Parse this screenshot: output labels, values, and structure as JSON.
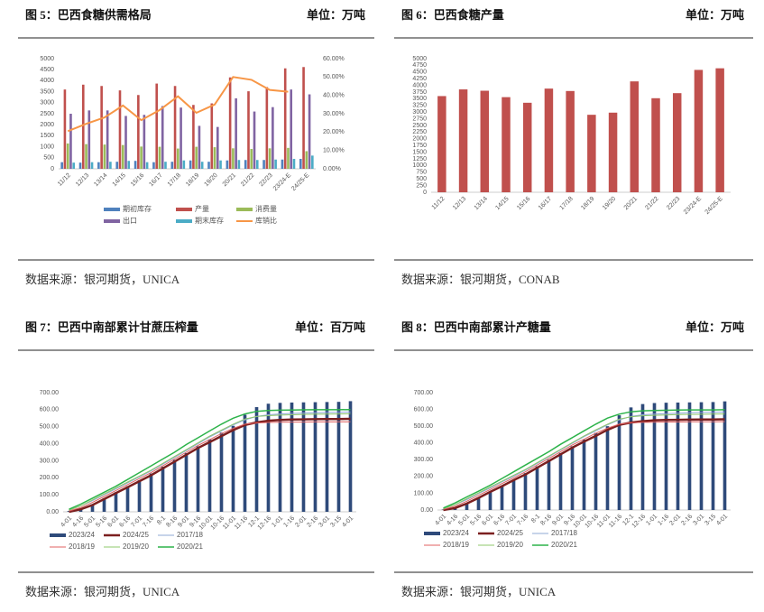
{
  "chart_data": [
    {
      "type": "combo",
      "title": "图 5：巴西食糖供需格局",
      "unit": "单位：万吨",
      "source": "数据来源：银河期货，UNICA",
      "categories": [
        "11/12",
        "12/13",
        "13/14",
        "14/15",
        "15/16",
        "16/17",
        "17/18",
        "18/19",
        "19/20",
        "20/21",
        "21/22",
        "22/23",
        "23/24-E",
        "24/25-E"
      ],
      "ylim": [
        0,
        5000
      ],
      "yticks": [
        0,
        500,
        1000,
        1500,
        2000,
        2500,
        3000,
        3500,
        4000,
        4500,
        5000
      ],
      "y2lim": [
        0,
        60
      ],
      "y2ticks": [
        {
          "value": 0,
          "label": "0.00%"
        },
        {
          "value": 10,
          "label": "10.00%"
        },
        {
          "value": 20,
          "label": "20.00%"
        },
        {
          "value": 30,
          "label": "30.00%"
        },
        {
          "value": 40,
          "label": "40.00%"
        },
        {
          "value": 50,
          "label": "50.00%"
        },
        {
          "value": 60,
          "label": "60.00%"
        }
      ],
      "series": [
        {
          "name": "期初库存",
          "type": "bar",
          "color": "#4f81bd",
          "values": [
            300,
            280,
            300,
            320,
            360,
            300,
            320,
            380,
            320,
            380,
            400,
            400,
            420,
            450
          ]
        },
        {
          "name": "产量",
          "type": "bar",
          "color": "#c0504d",
          "values": [
            3600,
            3820,
            3760,
            3560,
            3350,
            3870,
            3760,
            2900,
            2970,
            4150,
            3520,
            3710,
            4560,
            4620
          ]
        },
        {
          "name": "消费量",
          "type": "bar",
          "color": "#9bbb59",
          "values": [
            1150,
            1120,
            1100,
            1080,
            1010,
            1000,
            920,
            1000,
            980,
            930,
            900,
            930,
            950,
            800
          ]
        },
        {
          "name": "出口",
          "type": "bar",
          "color": "#8064a2",
          "values": [
            2500,
            2650,
            2650,
            2400,
            2450,
            2850,
            2780,
            1950,
            1900,
            3200,
            2600,
            2800,
            3600,
            3380
          ]
        },
        {
          "name": "期末库存",
          "type": "bar",
          "color": "#4bacc6",
          "values": [
            280,
            300,
            320,
            360,
            300,
            320,
            380,
            320,
            380,
            400,
            400,
            420,
            450,
            600
          ]
        },
        {
          "name": "库销比",
          "type": "line",
          "axis": "y2",
          "color": "#f79646",
          "values": [
            20.5,
            24.5,
            28,
            34.5,
            26.5,
            32,
            39.5,
            30.5,
            35,
            50,
            48.5,
            43,
            42,
            null
          ]
        }
      ]
    },
    {
      "type": "bar",
      "title": "图 6：巴西食糖产量",
      "unit": "单位：万吨",
      "source": "数据来源：银河期货，CONAB",
      "categories": [
        "11/12",
        "12/13",
        "13/14",
        "14/15",
        "15/16",
        "16/17",
        "17/18",
        "18/19",
        "19/20",
        "20/21",
        "21/22",
        "22/23",
        "23/24-E",
        "24/25-E"
      ],
      "ylim": [
        0,
        5000
      ],
      "yticks": [
        0,
        250,
        500,
        750,
        1000,
        1250,
        1500,
        1750,
        2000,
        2250,
        2500,
        2750,
        3000,
        3250,
        3500,
        3750,
        4000,
        4250,
        4500,
        4750,
        5000
      ],
      "series": [
        {
          "name": "产量",
          "type": "bar",
          "color": "#c0504d",
          "values": [
            3600,
            3850,
            3800,
            3560,
            3350,
            3880,
            3790,
            2900,
            2980,
            4150,
            3520,
            3710,
            4580,
            4640
          ]
        }
      ],
      "legend": false
    },
    {
      "type": "combo",
      "title": "图 7：巴西中南部累计甘蔗压榨量",
      "unit": "单位：百万吨",
      "source": "数据来源：银河期货，UNICA",
      "categories": [
        "4-01",
        "4-16",
        "5-01",
        "5-16",
        "6-01",
        "6-16",
        "7-01",
        "7-16",
        "8-1",
        "8-16",
        "9-01",
        "9-16",
        "10-01",
        "10-16",
        "11-01",
        "11-16",
        "12-1",
        "12-16",
        "1-01",
        "1-16",
        "2-01",
        "2-16",
        "3-01",
        "3-15",
        "4-01"
      ],
      "ylim": [
        0,
        700
      ],
      "yticks": [
        {
          "value": 0,
          "label": "0.00"
        },
        {
          "value": 100,
          "label": "100.00"
        },
        {
          "value": 200,
          "label": "200.00"
        },
        {
          "value": 300,
          "label": "300.00"
        },
        {
          "value": 400,
          "label": "400.00"
        },
        {
          "value": 500,
          "label": "500.00"
        },
        {
          "value": 600,
          "label": "600.00"
        },
        {
          "value": 700,
          "label": "700.00"
        }
      ],
      "series": [
        {
          "name": "2023/24",
          "type": "bar",
          "color": "#2e4a7a",
          "values": [
            5,
            20,
            45,
            80,
            115,
            150,
            185,
            225,
            265,
            305,
            345,
            385,
            425,
            465,
            505,
            570,
            615,
            635,
            640,
            642,
            643,
            644,
            645,
            646,
            650
          ]
        },
        {
          "name": "2024/25",
          "type": "line",
          "color": "#7b1f1f",
          "width": 2.5,
          "values": [
            0,
            15,
            40,
            75,
            110,
            145,
            180,
            215,
            255,
            295,
            335,
            375,
            410,
            445,
            480,
            510,
            525,
            535,
            540,
            542,
            543,
            544,
            545,
            545,
            546
          ]
        },
        {
          "name": "2017/18",
          "type": "line",
          "color": "#8fa9d6",
          "width": 1,
          "values": [
            10,
            35,
            65,
            100,
            135,
            170,
            205,
            240,
            280,
            320,
            360,
            400,
            440,
            475,
            510,
            540,
            560,
            570,
            575,
            578,
            580,
            582,
            584,
            585,
            586
          ]
        },
        {
          "name": "2018/19",
          "type": "line",
          "color": "#e06060",
          "width": 1,
          "values": [
            5,
            25,
            55,
            90,
            125,
            160,
            195,
            230,
            270,
            310,
            350,
            390,
            425,
            460,
            490,
            515,
            522,
            525,
            526,
            527,
            527,
            528,
            528,
            528,
            529
          ]
        },
        {
          "name": "2019/20",
          "type": "line",
          "color": "#8fc86b",
          "width": 1,
          "values": [
            10,
            35,
            70,
            105,
            140,
            175,
            210,
            245,
            285,
            325,
            365,
            405,
            445,
            480,
            515,
            545,
            560,
            565,
            568,
            570,
            572,
            573,
            574,
            575,
            576
          ]
        },
        {
          "name": "2020/21",
          "type": "line",
          "color": "#2db34a",
          "width": 1.5,
          "values": [
            15,
            45,
            80,
            115,
            150,
            190,
            230,
            270,
            310,
            350,
            395,
            435,
            475,
            515,
            550,
            575,
            590,
            595,
            597,
            598,
            599,
            600,
            600,
            600,
            601
          ]
        }
      ]
    },
    {
      "type": "combo",
      "title": "图 8：巴西中南部累计产糖量",
      "unit": "单位：万吨",
      "source": "数据来源：银河期货，UNICA",
      "categories": [
        "4-01",
        "4-16",
        "5-01",
        "5-16",
        "6-01",
        "6-16",
        "7-01",
        "7-16",
        "8-1",
        "8-16",
        "9-01",
        "9-16",
        "10-01",
        "10-16",
        "11-01",
        "11-16",
        "12-1",
        "12-16",
        "1-01",
        "1-16",
        "2-01",
        "2-16",
        "3-01",
        "3-15",
        "4-01"
      ],
      "ylim": [
        0,
        700
      ],
      "yticks": [
        {
          "value": 0,
          "label": "0.00"
        },
        {
          "value": 100,
          "label": "100.00"
        },
        {
          "value": 200,
          "label": "200.00"
        },
        {
          "value": 300,
          "label": "300.00"
        },
        {
          "value": 400,
          "label": "400.00"
        },
        {
          "value": 500,
          "label": "500.00"
        },
        {
          "value": 600,
          "label": "600.00"
        },
        {
          "value": 700,
          "label": "700.00"
        }
      ],
      "series": [
        {
          "name": "2023/24",
          "type": "bar",
          "color": "#2e4a7a",
          "values": [
            3,
            15,
            40,
            75,
            110,
            145,
            180,
            220,
            260,
            300,
            340,
            380,
            420,
            460,
            500,
            565,
            612,
            632,
            638,
            640,
            641,
            642,
            643,
            644,
            648
          ]
        },
        {
          "name": "2024/25",
          "type": "line",
          "color": "#7b1f1f",
          "width": 2.5,
          "values": [
            0,
            12,
            38,
            72,
            108,
            142,
            178,
            212,
            252,
            292,
            332,
            372,
            408,
            442,
            478,
            508,
            522,
            530,
            535,
            537,
            538,
            539,
            540,
            540,
            541
          ]
        },
        {
          "name": "2017/18",
          "type": "line",
          "color": "#8fa9d6",
          "width": 1,
          "values": [
            8,
            32,
            62,
            98,
            132,
            168,
            202,
            238,
            278,
            318,
            358,
            398,
            438,
            472,
            508,
            538,
            558,
            568,
            572,
            575,
            578,
            580,
            582,
            583,
            584
          ]
        },
        {
          "name": "2018/19",
          "type": "line",
          "color": "#e06060",
          "width": 1,
          "values": [
            4,
            22,
            52,
            88,
            122,
            158,
            192,
            228,
            268,
            308,
            348,
            388,
            422,
            458,
            488,
            512,
            520,
            523,
            524,
            525,
            525,
            526,
            526,
            526,
            527
          ]
        },
        {
          "name": "2019/20",
          "type": "line",
          "color": "#8fc86b",
          "width": 1,
          "values": [
            8,
            32,
            68,
            102,
            138,
            172,
            208,
            242,
            282,
            322,
            362,
            402,
            442,
            478,
            512,
            542,
            556,
            562,
            565,
            567,
            569,
            570,
            571,
            572,
            573
          ]
        },
        {
          "name": "2020/21",
          "type": "line",
          "color": "#2db34a",
          "width": 1.5,
          "values": [
            12,
            42,
            78,
            112,
            148,
            188,
            228,
            268,
            308,
            348,
            392,
            432,
            472,
            512,
            548,
            572,
            586,
            592,
            594,
            595,
            596,
            597,
            597,
            597,
            598
          ]
        }
      ]
    }
  ]
}
